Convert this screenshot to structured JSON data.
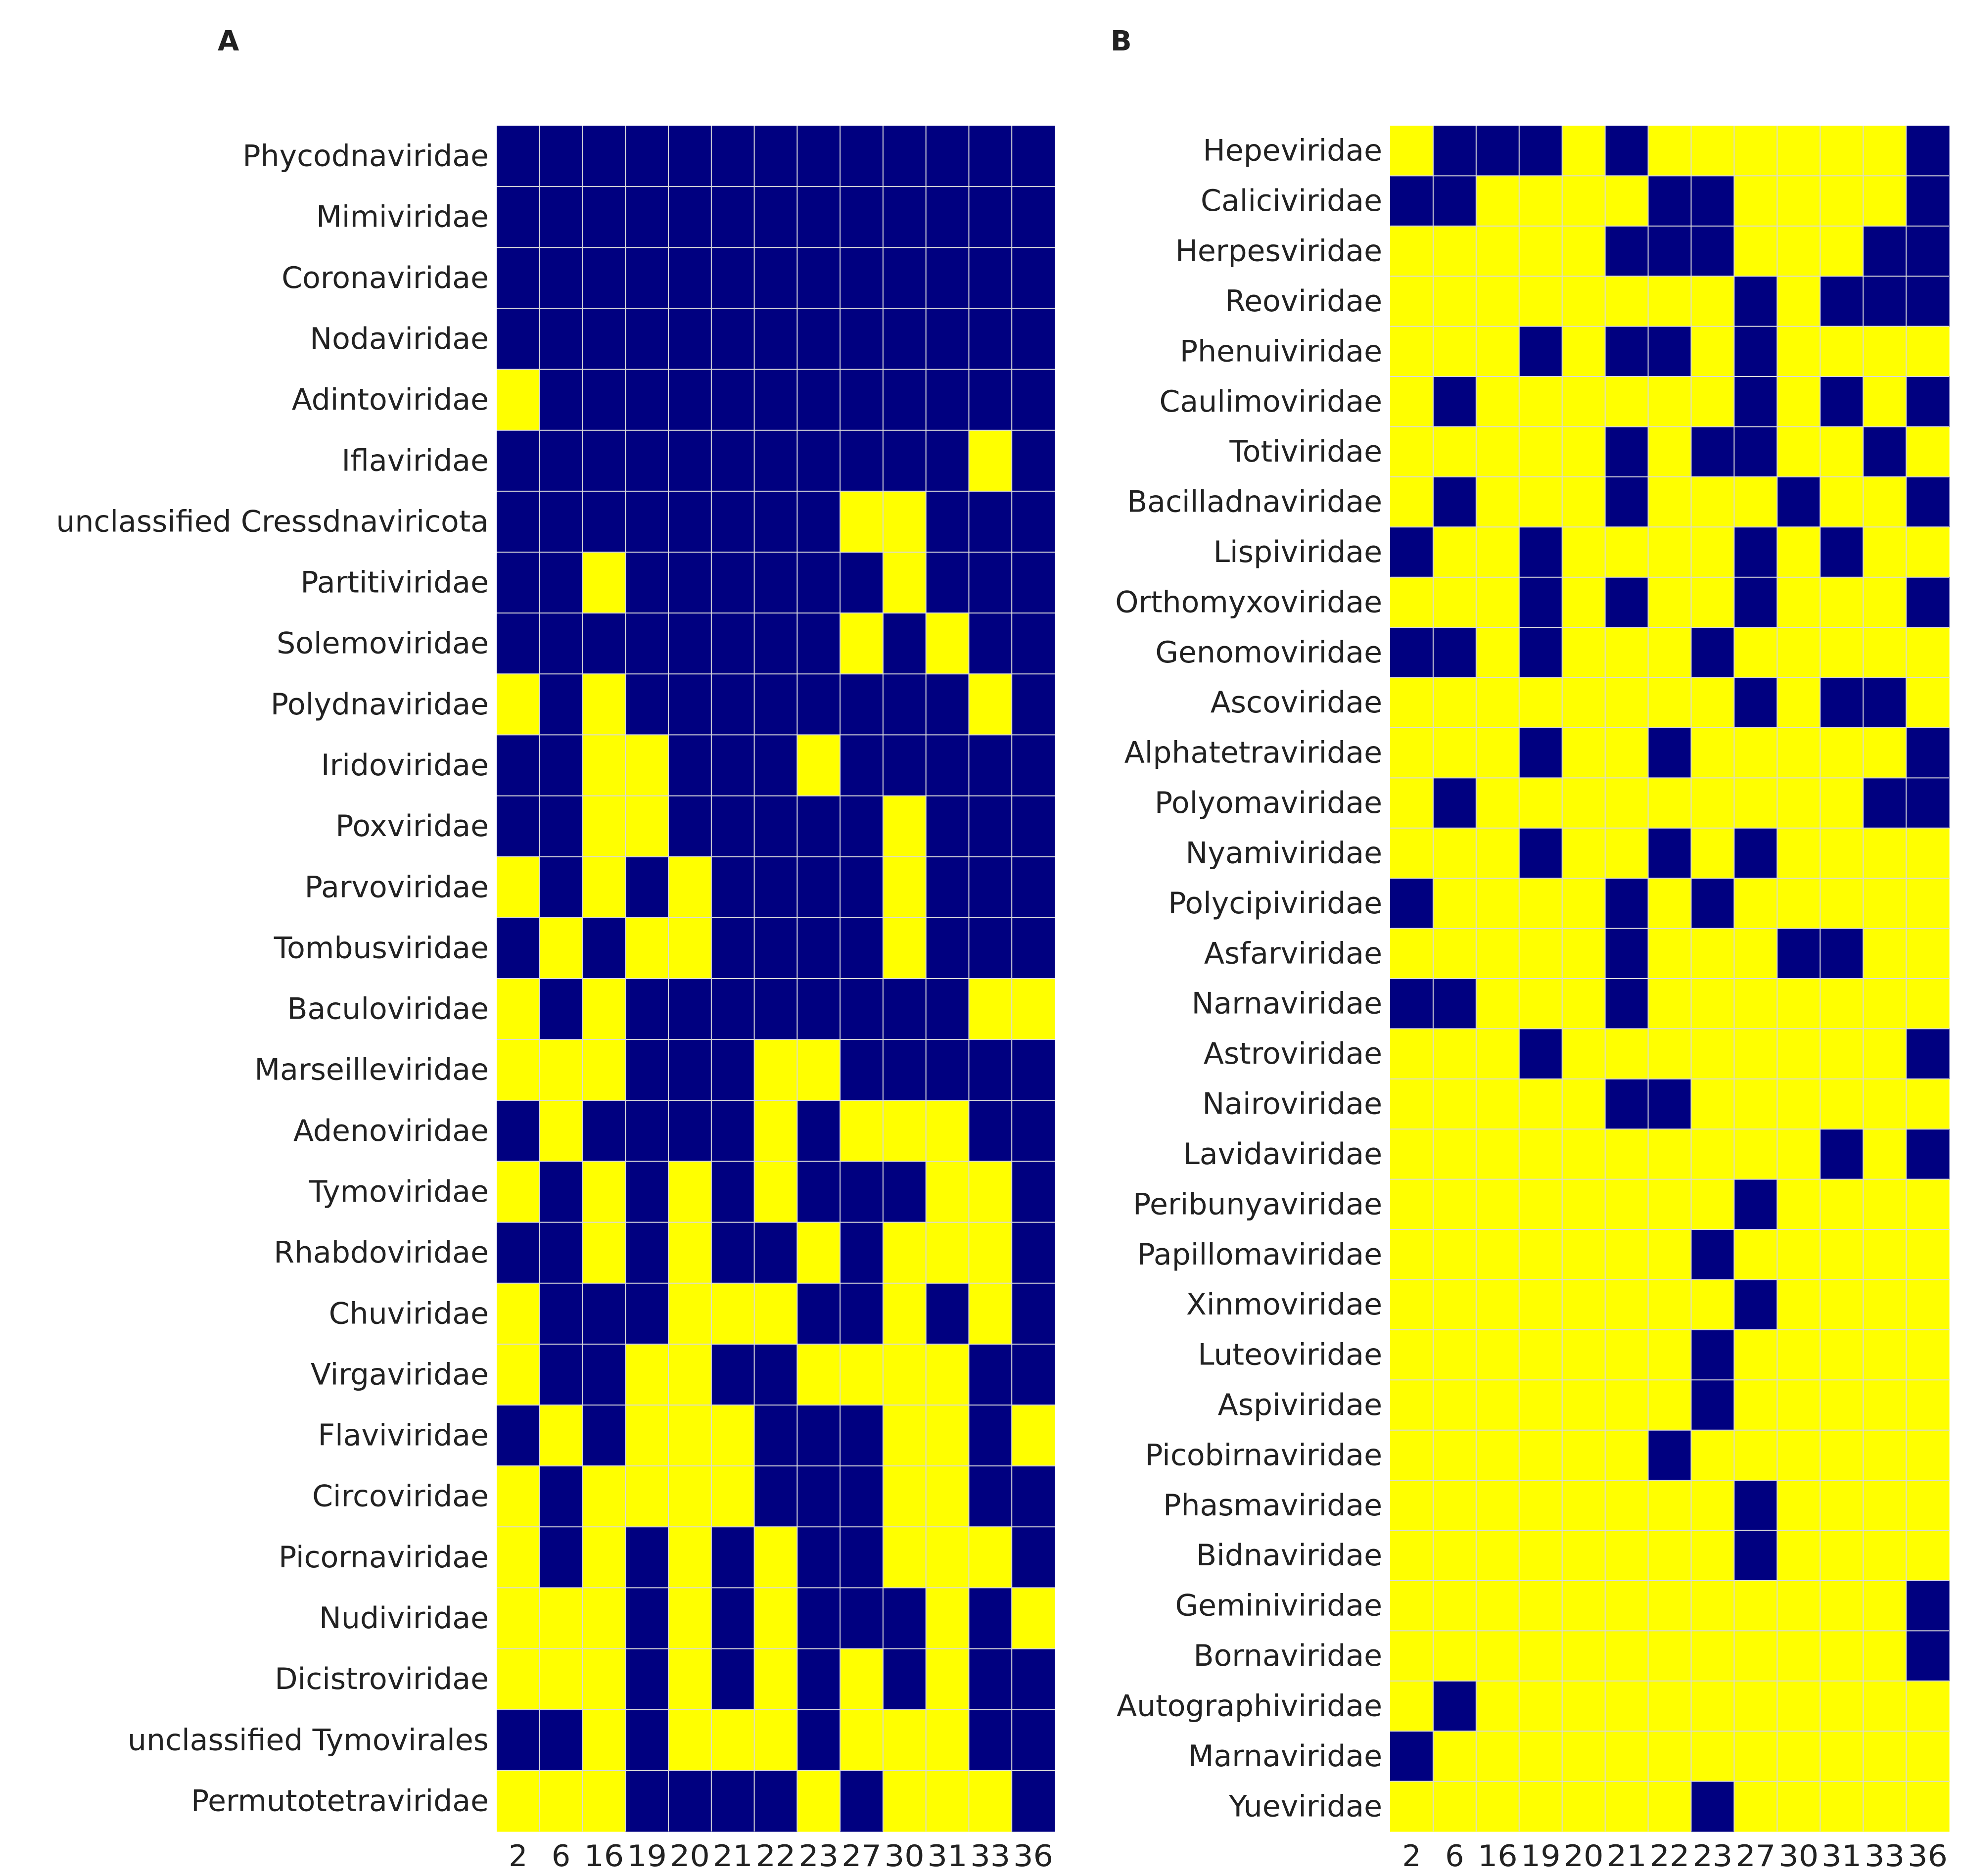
{
  "colors": {
    "present": "#000080",
    "absent": "#ffff00",
    "grid": "#d9d9d9",
    "text": "#222222"
  },
  "chart_data": [
    {
      "type": "heatmap",
      "panel": "A",
      "x": [
        "2",
        "6",
        "16",
        "19",
        "20",
        "21",
        "22",
        "23",
        "27",
        "30",
        "31",
        "33",
        "36"
      ],
      "y": [
        "Phycodnaviridae",
        "Mimiviridae",
        "Coronaviridae",
        "Nodaviridae",
        "Adintoviridae",
        "Iflaviridae",
        "unclassified Cressdnaviricota",
        "Partitiviridae",
        "Solemoviridae",
        "Polydnaviridae",
        "Iridoviridae",
        "Poxviridae",
        "Parvoviridae",
        "Tombusviridae",
        "Baculoviridae",
        "Marseilleviridae",
        "Adenoviridae",
        "Tymoviridae",
        "Rhabdoviridae",
        "Chuviridae",
        "Virgaviridae",
        "Flaviviridae",
        "Circoviridae",
        "Picornaviridae",
        "Nudiviridae",
        "Dicistroviridae",
        "unclassified Tymovirales",
        "Permutotetraviridae"
      ],
      "values": [
        [
          1,
          1,
          1,
          1,
          1,
          1,
          1,
          1,
          1,
          1,
          1,
          1,
          1
        ],
        [
          1,
          1,
          1,
          1,
          1,
          1,
          1,
          1,
          1,
          1,
          1,
          1,
          1
        ],
        [
          1,
          1,
          1,
          1,
          1,
          1,
          1,
          1,
          1,
          1,
          1,
          1,
          1
        ],
        [
          1,
          1,
          1,
          1,
          1,
          1,
          1,
          1,
          1,
          1,
          1,
          1,
          1
        ],
        [
          0,
          1,
          1,
          1,
          1,
          1,
          1,
          1,
          1,
          1,
          1,
          1,
          1
        ],
        [
          1,
          1,
          1,
          1,
          1,
          1,
          1,
          1,
          1,
          1,
          1,
          0,
          1
        ],
        [
          1,
          1,
          1,
          1,
          1,
          1,
          1,
          1,
          0,
          0,
          1,
          1,
          1
        ],
        [
          1,
          1,
          0,
          1,
          1,
          1,
          1,
          1,
          1,
          0,
          1,
          1,
          1
        ],
        [
          1,
          1,
          1,
          1,
          1,
          1,
          1,
          1,
          0,
          1,
          0,
          1,
          1
        ],
        [
          0,
          1,
          0,
          1,
          1,
          1,
          1,
          1,
          1,
          1,
          1,
          0,
          1
        ],
        [
          1,
          1,
          0,
          0,
          1,
          1,
          1,
          0,
          1,
          1,
          1,
          1,
          1
        ],
        [
          1,
          1,
          0,
          0,
          1,
          1,
          1,
          1,
          1,
          0,
          1,
          1,
          1
        ],
        [
          0,
          1,
          0,
          1,
          0,
          1,
          1,
          1,
          1,
          0,
          1,
          1,
          1
        ],
        [
          1,
          0,
          1,
          0,
          0,
          1,
          1,
          1,
          1,
          0,
          1,
          1,
          1
        ],
        [
          0,
          1,
          0,
          1,
          1,
          1,
          1,
          1,
          1,
          1,
          1,
          0,
          0
        ],
        [
          0,
          0,
          0,
          1,
          1,
          1,
          0,
          0,
          1,
          1,
          1,
          1,
          1
        ],
        [
          1,
          0,
          1,
          1,
          1,
          1,
          0,
          1,
          0,
          0,
          0,
          1,
          1
        ],
        [
          0,
          1,
          0,
          1,
          0,
          1,
          0,
          1,
          1,
          1,
          0,
          0,
          1
        ],
        [
          1,
          1,
          0,
          1,
          0,
          1,
          1,
          0,
          1,
          0,
          0,
          0,
          1
        ],
        [
          0,
          1,
          1,
          1,
          0,
          0,
          0,
          1,
          1,
          0,
          1,
          0,
          1
        ],
        [
          0,
          1,
          1,
          0,
          0,
          1,
          1,
          0,
          0,
          0,
          0,
          1,
          1
        ],
        [
          1,
          0,
          1,
          0,
          0,
          0,
          1,
          1,
          1,
          0,
          0,
          1,
          0
        ],
        [
          0,
          1,
          0,
          0,
          0,
          0,
          1,
          1,
          1,
          0,
          0,
          1,
          1
        ],
        [
          0,
          1,
          0,
          1,
          0,
          1,
          0,
          1,
          1,
          0,
          0,
          0,
          1
        ],
        [
          0,
          0,
          0,
          1,
          0,
          1,
          0,
          1,
          1,
          1,
          0,
          1,
          0
        ],
        [
          0,
          0,
          0,
          1,
          0,
          1,
          0,
          1,
          0,
          1,
          0,
          1,
          1
        ],
        [
          1,
          1,
          0,
          1,
          0,
          0,
          0,
          1,
          0,
          0,
          0,
          1,
          1
        ],
        [
          0,
          0,
          0,
          1,
          1,
          1,
          1,
          0,
          1,
          0,
          0,
          0,
          1
        ]
      ]
    },
    {
      "type": "heatmap",
      "panel": "B",
      "x": [
        "2",
        "6",
        "16",
        "19",
        "20",
        "21",
        "22",
        "23",
        "27",
        "30",
        "31",
        "33",
        "36"
      ],
      "y": [
        "Hepeviridae",
        "Caliciviridae",
        "Herpesviridae",
        "Reoviridae",
        "Phenuiviridae",
        "Caulimoviridae",
        "Totiviridae",
        "Bacilladnaviridae",
        "Lispiviridae",
        "Orthomyxoviridae",
        "Genomoviridae",
        "Ascoviridae",
        "Alphatetraviridae",
        "Polyomaviridae",
        "Nyamiviridae",
        "Polycipiviridae",
        "Asfarviridae",
        "Narnaviridae",
        "Astroviridae",
        "Nairoviridae",
        "Lavidaviridae",
        "Peribunyaviridae",
        "Papillomaviridae",
        "Xinmoviridae",
        "Luteoviridae",
        "Aspiviridae",
        "Picobirnaviridae",
        "Phasmaviridae",
        "Bidnaviridae",
        "Geminiviridae",
        "Bornaviridae",
        "Autographiviridae",
        "Marnaviridae",
        "Yueviridae"
      ],
      "values": [
        [
          0,
          1,
          1,
          1,
          0,
          1,
          0,
          0,
          0,
          0,
          0,
          0,
          1
        ],
        [
          1,
          1,
          0,
          0,
          0,
          0,
          1,
          1,
          0,
          0,
          0,
          0,
          1
        ],
        [
          0,
          0,
          0,
          0,
          0,
          1,
          1,
          1,
          0,
          0,
          0,
          1,
          1
        ],
        [
          0,
          0,
          0,
          0,
          0,
          0,
          0,
          0,
          1,
          0,
          1,
          1,
          1
        ],
        [
          0,
          0,
          0,
          1,
          0,
          1,
          1,
          0,
          1,
          0,
          0,
          0,
          0
        ],
        [
          0,
          1,
          0,
          0,
          0,
          0,
          0,
          0,
          1,
          0,
          1,
          0,
          1
        ],
        [
          0,
          0,
          0,
          0,
          0,
          1,
          0,
          1,
          1,
          0,
          0,
          1,
          0
        ],
        [
          0,
          1,
          0,
          0,
          0,
          1,
          0,
          0,
          0,
          1,
          0,
          0,
          1
        ],
        [
          1,
          0,
          0,
          1,
          0,
          0,
          0,
          0,
          1,
          0,
          1,
          0,
          0
        ],
        [
          0,
          0,
          0,
          1,
          0,
          1,
          0,
          0,
          1,
          0,
          0,
          0,
          1
        ],
        [
          1,
          1,
          0,
          1,
          0,
          0,
          0,
          1,
          0,
          0,
          0,
          0,
          0
        ],
        [
          0,
          0,
          0,
          0,
          0,
          0,
          0,
          0,
          1,
          0,
          1,
          1,
          0
        ],
        [
          0,
          0,
          0,
          1,
          0,
          0,
          1,
          0,
          0,
          0,
          0,
          0,
          1
        ],
        [
          0,
          1,
          0,
          0,
          0,
          0,
          0,
          0,
          0,
          0,
          0,
          1,
          1
        ],
        [
          0,
          0,
          0,
          1,
          0,
          0,
          1,
          0,
          1,
          0,
          0,
          0,
          0
        ],
        [
          1,
          0,
          0,
          0,
          0,
          1,
          0,
          1,
          0,
          0,
          0,
          0,
          0
        ],
        [
          0,
          0,
          0,
          0,
          0,
          1,
          0,
          0,
          0,
          1,
          1,
          0,
          0
        ],
        [
          1,
          1,
          0,
          0,
          0,
          1,
          0,
          0,
          0,
          0,
          0,
          0,
          0
        ],
        [
          0,
          0,
          0,
          1,
          0,
          0,
          0,
          0,
          0,
          0,
          0,
          0,
          1
        ],
        [
          0,
          0,
          0,
          0,
          0,
          1,
          1,
          0,
          0,
          0,
          0,
          0,
          0
        ],
        [
          0,
          0,
          0,
          0,
          0,
          0,
          0,
          0,
          0,
          0,
          1,
          0,
          1
        ],
        [
          0,
          0,
          0,
          0,
          0,
          0,
          0,
          0,
          1,
          0,
          0,
          0,
          0
        ],
        [
          0,
          0,
          0,
          0,
          0,
          0,
          0,
          1,
          0,
          0,
          0,
          0,
          0
        ],
        [
          0,
          0,
          0,
          0,
          0,
          0,
          0,
          0,
          1,
          0,
          0,
          0,
          0
        ],
        [
          0,
          0,
          0,
          0,
          0,
          0,
          0,
          1,
          0,
          0,
          0,
          0,
          0
        ],
        [
          0,
          0,
          0,
          0,
          0,
          0,
          0,
          1,
          0,
          0,
          0,
          0,
          0
        ],
        [
          0,
          0,
          0,
          0,
          0,
          0,
          1,
          0,
          0,
          0,
          0,
          0,
          0
        ],
        [
          0,
          0,
          0,
          0,
          0,
          0,
          0,
          0,
          1,
          0,
          0,
          0,
          0
        ],
        [
          0,
          0,
          0,
          0,
          0,
          0,
          0,
          0,
          1,
          0,
          0,
          0,
          0
        ],
        [
          0,
          0,
          0,
          0,
          0,
          0,
          0,
          0,
          0,
          0,
          0,
          0,
          1
        ],
        [
          0,
          0,
          0,
          0,
          0,
          0,
          0,
          0,
          0,
          0,
          0,
          0,
          1
        ],
        [
          0,
          1,
          0,
          0,
          0,
          0,
          0,
          0,
          0,
          0,
          0,
          0,
          0
        ],
        [
          1,
          0,
          0,
          0,
          0,
          0,
          0,
          0,
          0,
          0,
          0,
          0,
          0
        ],
        [
          0,
          0,
          0,
          0,
          0,
          0,
          0,
          1,
          0,
          0,
          0,
          0,
          0
        ]
      ]
    }
  ]
}
